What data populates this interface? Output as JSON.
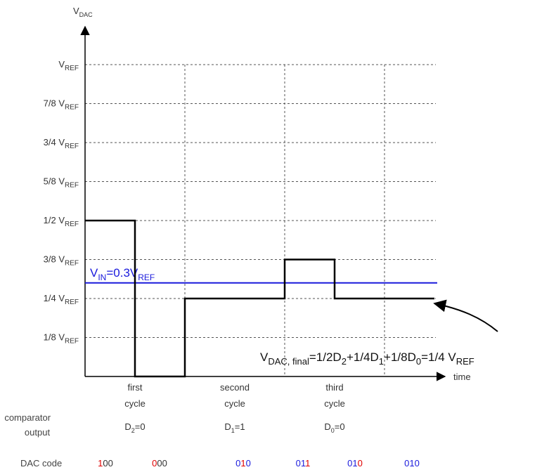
{
  "chart_data": {
    "type": "line",
    "y_axis": {
      "name": "V",
      "sub": "DAC"
    },
    "x_axis": {
      "label": "time"
    },
    "y_levels": [
      {
        "value": 1.0,
        "text": "V",
        "sub": "REF"
      },
      {
        "value": 0.875,
        "text": "7/8 V",
        "sub": "REF"
      },
      {
        "value": 0.75,
        "text": "3/4 V",
        "sub": "REF"
      },
      {
        "value": 0.625,
        "text": "5/8 V",
        "sub": "REF"
      },
      {
        "value": 0.5,
        "text": "1/2 V",
        "sub": "REF"
      },
      {
        "value": 0.375,
        "text": "3/8 V",
        "sub": "REF"
      },
      {
        "value": 0.25,
        "text": "1/4 V",
        "sub": "REF"
      },
      {
        "value": 0.125,
        "text": "1/8 V",
        "sub": "REF"
      }
    ],
    "dac_signal": {
      "points": [
        [
          0,
          0.5
        ],
        [
          1,
          0.5
        ],
        [
          1,
          0
        ],
        [
          2,
          0
        ],
        [
          2,
          0.25
        ],
        [
          4,
          0.25
        ],
        [
          4,
          0.375
        ],
        [
          5,
          0.375
        ],
        [
          5,
          0.25
        ],
        [
          7,
          0.25
        ]
      ]
    },
    "vin": {
      "value": 0.3,
      "label_main": "V",
      "label_sub": "IN",
      "label_mid": "=0.3V",
      "label_sub2": "REF",
      "color": "#1a1adc"
    },
    "annotation": {
      "parts": [
        {
          "t": "V",
          "sub": false
        },
        {
          "t": "DAC, final",
          "sub": true
        },
        {
          "t": "=1/2D",
          "sub": false
        },
        {
          "t": "2",
          "sub": true
        },
        {
          "t": "+1/4D",
          "sub": false
        },
        {
          "t": "1",
          "sub": true
        },
        {
          "t": "+1/8D",
          "sub": false
        },
        {
          "t": "0",
          "sub": true
        },
        {
          "t": "=1/4 V",
          "sub": false
        },
        {
          "t": "REF",
          "sub": true
        }
      ]
    },
    "cycles": [
      {
        "line1": "first",
        "line2": "cycle",
        "out_pre": "D",
        "out_sub": "2",
        "out_post": "=0"
      },
      {
        "line1": "second",
        "line2": "cycle",
        "out_pre": "D",
        "out_sub": "1",
        "out_post": "=1"
      },
      {
        "line1": "third",
        "line2": "cycle",
        "out_pre": "D",
        "out_sub": "0",
        "out_post": "=0"
      }
    ],
    "comparator_label": [
      "comparator",
      "output"
    ],
    "dac_code_label": "DAC code",
    "dac_codes": [
      {
        "digits": [
          {
            "d": "1",
            "c": "#e00000"
          },
          {
            "d": "0",
            "c": "#333333"
          },
          {
            "d": "0",
            "c": "#333333"
          }
        ]
      },
      {
        "digits": [
          {
            "d": "0",
            "c": "#e00000"
          },
          {
            "d": "0",
            "c": "#333333"
          },
          {
            "d": "0",
            "c": "#333333"
          }
        ]
      },
      {
        "digits": [
          {
            "d": "0",
            "c": "#1a1adc"
          },
          {
            "d": "1",
            "c": "#e00000"
          },
          {
            "d": "0",
            "c": "#1a1adc"
          }
        ]
      },
      {
        "digits": [
          {
            "d": "0",
            "c": "#1a1adc"
          },
          {
            "d": "1",
            "c": "#1a1adc"
          },
          {
            "d": "1",
            "c": "#e00000"
          }
        ]
      },
      {
        "digits": [
          {
            "d": "0",
            "c": "#1a1adc"
          },
          {
            "d": "1",
            "c": "#1a1adc"
          },
          {
            "d": "0",
            "c": "#e00000"
          }
        ]
      },
      {
        "digits": [
          {
            "d": "0",
            "c": "#1a1adc"
          },
          {
            "d": "1",
            "c": "#1a1adc"
          },
          {
            "d": "0",
            "c": "#1a1adc"
          }
        ]
      }
    ]
  }
}
